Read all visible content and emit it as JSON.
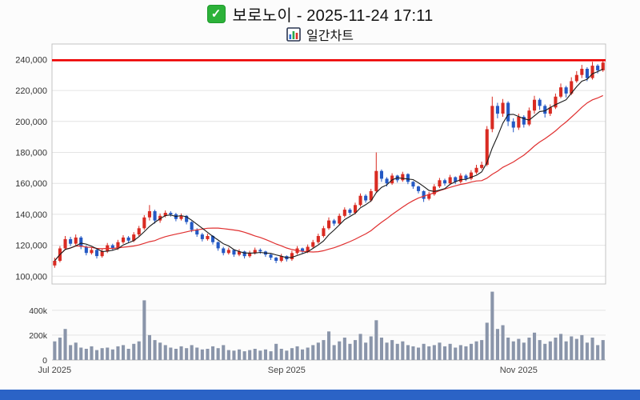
{
  "header": {
    "title": "보로노이 - 2025-11-24 17:11",
    "subtitle": "일간차트",
    "checkbox_glyph": "✓"
  },
  "footer": {
    "bar_color": "#2b63c6"
  },
  "chart_data": {
    "type": "candlestick",
    "title": "보로노이 - 2025-11-24 17:11",
    "subtitle": "일간차트",
    "x_ticks": [
      {
        "index": 0,
        "label": "Jul 2025"
      },
      {
        "index": 44,
        "label": "Sep 2025"
      },
      {
        "index": 88,
        "label": "Nov 2025"
      }
    ],
    "price_axis": {
      "min": 95000,
      "max": 250000,
      "ticks": [
        100000,
        120000,
        140000,
        160000,
        180000,
        200000,
        220000,
        240000
      ]
    },
    "volume_axis": {
      "max": 560000,
      "ticks": [
        0,
        200000,
        400000
      ],
      "tick_labels": [
        "0",
        "200k",
        "400k"
      ]
    },
    "alert_line": 239500,
    "ma_periods": {
      "fast": 5,
      "slow": 20
    },
    "colors": {
      "up": "#d92b22",
      "down": "#2459c4",
      "ma_fast": "#1a1a1a",
      "ma_slow": "#e03030",
      "volume": "#8a95aa",
      "alert": "#ee0000",
      "grid": "#e4e4e4",
      "border": "#c3c3c3",
      "tick_text": "#333333"
    },
    "candle_fields": [
      "open",
      "high",
      "low",
      "close",
      "volume"
    ],
    "candles": [
      [
        107000,
        112000,
        105500,
        110000,
        150000
      ],
      [
        110000,
        119500,
        109000,
        118000,
        180000
      ],
      [
        118000,
        126000,
        117000,
        124000,
        250000
      ],
      [
        124000,
        125500,
        119500,
        121000,
        120000
      ],
      [
        121000,
        127000,
        120000,
        125000,
        140000
      ],
      [
        125000,
        126000,
        117500,
        119000,
        100000
      ],
      [
        119000,
        120000,
        113500,
        115000,
        90000
      ],
      [
        115000,
        118500,
        114000,
        117000,
        110000
      ],
      [
        117000,
        118000,
        111500,
        113000,
        80000
      ],
      [
        113000,
        117500,
        112000,
        116000,
        95000
      ],
      [
        116000,
        121500,
        115000,
        120000,
        100000
      ],
      [
        120000,
        121000,
        116500,
        118000,
        85000
      ],
      [
        118000,
        123500,
        117000,
        122000,
        110000
      ],
      [
        122000,
        126500,
        121000,
        125000,
        120000
      ],
      [
        125000,
        126000,
        121500,
        123000,
        90000
      ],
      [
        123000,
        128500,
        122000,
        127000,
        130000
      ],
      [
        127000,
        132500,
        126000,
        131000,
        150000
      ],
      [
        131000,
        139500,
        130000,
        138000,
        480000
      ],
      [
        138000,
        146000,
        136000,
        142000,
        200000
      ],
      [
        142000,
        143000,
        134000,
        136000,
        160000
      ],
      [
        136000,
        140500,
        134500,
        139000,
        140000
      ],
      [
        139000,
        142500,
        138000,
        141000,
        120000
      ],
      [
        141000,
        142000,
        138500,
        140000,
        100000
      ],
      [
        140000,
        141000,
        135500,
        137000,
        90000
      ],
      [
        137000,
        140500,
        136000,
        139000,
        110000
      ],
      [
        139000,
        139500,
        133500,
        135000,
        95000
      ],
      [
        135000,
        135500,
        128500,
        130000,
        120000
      ],
      [
        130000,
        131000,
        125500,
        127000,
        100000
      ],
      [
        127000,
        128000,
        122500,
        124000,
        85000
      ],
      [
        124000,
        127500,
        123000,
        126000,
        90000
      ],
      [
        126000,
        126500,
        120500,
        122000,
        110000
      ],
      [
        122000,
        122500,
        116500,
        118000,
        95000
      ],
      [
        118000,
        119000,
        113500,
        115000,
        120000
      ],
      [
        115000,
        118500,
        114000,
        117000,
        80000
      ],
      [
        117000,
        117500,
        112500,
        114000,
        75000
      ],
      [
        114000,
        117500,
        113000,
        116000,
        85000
      ],
      [
        116000,
        116500,
        111500,
        113000,
        70000
      ],
      [
        113000,
        116500,
        112000,
        115000,
        80000
      ],
      [
        115000,
        118500,
        114000,
        117000,
        90000
      ],
      [
        117000,
        118000,
        114500,
        116000,
        75000
      ],
      [
        116000,
        116500,
        112500,
        114000,
        85000
      ],
      [
        114000,
        114500,
        110500,
        112000,
        70000
      ],
      [
        112000,
        112500,
        108500,
        110000,
        130000
      ],
      [
        110000,
        114500,
        109000,
        113000,
        90000
      ],
      [
        113000,
        113500,
        109500,
        111000,
        75000
      ],
      [
        111000,
        116500,
        110000,
        115000,
        95000
      ],
      [
        115000,
        119500,
        114000,
        118000,
        110000
      ],
      [
        118000,
        118500,
        114500,
        116000,
        85000
      ],
      [
        116000,
        120500,
        115000,
        119000,
        100000
      ],
      [
        119000,
        123500,
        118000,
        122000,
        120000
      ],
      [
        122000,
        127500,
        121000,
        126000,
        140000
      ],
      [
        126000,
        132500,
        125000,
        131000,
        160000
      ],
      [
        131000,
        138000,
        130000,
        136000,
        230000
      ],
      [
        136000,
        137000,
        132500,
        134000,
        120000
      ],
      [
        134000,
        140500,
        133000,
        139000,
        150000
      ],
      [
        139000,
        144500,
        138000,
        143000,
        180000
      ],
      [
        143000,
        144000,
        139500,
        141000,
        130000
      ],
      [
        141000,
        147500,
        140000,
        146000,
        160000
      ],
      [
        146000,
        153500,
        145000,
        152000,
        210000
      ],
      [
        152000,
        153000,
        147500,
        149000,
        140000
      ],
      [
        149000,
        156500,
        148000,
        155000,
        190000
      ],
      [
        155000,
        180000,
        154000,
        168000,
        320000
      ],
      [
        168000,
        169000,
        161000,
        163000,
        180000
      ],
      [
        163000,
        164000,
        158000,
        160000,
        140000
      ],
      [
        160000,
        166500,
        159000,
        165000,
        160000
      ],
      [
        165000,
        165500,
        160500,
        162000,
        130000
      ],
      [
        162000,
        167500,
        161000,
        166000,
        150000
      ],
      [
        166000,
        166500,
        159500,
        161000,
        120000
      ],
      [
        161000,
        161500,
        156500,
        158000,
        110000
      ],
      [
        158000,
        158500,
        153500,
        155000,
        100000
      ],
      [
        155000,
        155500,
        148000,
        150000,
        130000
      ],
      [
        150000,
        154500,
        149000,
        153000,
        110000
      ],
      [
        153000,
        159500,
        152000,
        158000,
        120000
      ],
      [
        158000,
        163500,
        157000,
        162000,
        140000
      ],
      [
        162000,
        163000,
        158500,
        160000,
        110000
      ],
      [
        160000,
        165500,
        159000,
        164000,
        130000
      ],
      [
        164000,
        164500,
        159500,
        161000,
        100000
      ],
      [
        161000,
        166500,
        160000,
        165000,
        120000
      ],
      [
        165000,
        166000,
        161500,
        163000,
        110000
      ],
      [
        163000,
        168500,
        162000,
        167000,
        130000
      ],
      [
        167000,
        172000,
        166000,
        170000,
        150000
      ],
      [
        170000,
        174000,
        169000,
        172000,
        160000
      ],
      [
        172000,
        197000,
        171000,
        195000,
        300000
      ],
      [
        195000,
        216000,
        193000,
        210000,
        550000
      ],
      [
        210000,
        212000,
        202000,
        205000,
        250000
      ],
      [
        205000,
        214500,
        203000,
        212000,
        280000
      ],
      [
        212000,
        213000,
        197000,
        200000,
        180000
      ],
      [
        200000,
        202000,
        193000,
        196000,
        150000
      ],
      [
        196000,
        205000,
        194500,
        203000,
        170000
      ],
      [
        203000,
        204000,
        196000,
        198000,
        140000
      ],
      [
        198000,
        209000,
        197000,
        207000,
        180000
      ],
      [
        207000,
        216500,
        205000,
        214000,
        220000
      ],
      [
        214000,
        215000,
        207500,
        210000,
        160000
      ],
      [
        210000,
        211000,
        202500,
        205000,
        130000
      ],
      [
        205000,
        211000,
        203500,
        209000,
        150000
      ],
      [
        209000,
        218000,
        208000,
        216000,
        180000
      ],
      [
        216000,
        224500,
        215000,
        222000,
        210000
      ],
      [
        222000,
        223000,
        215500,
        218000,
        150000
      ],
      [
        218000,
        228500,
        217000,
        226000,
        190000
      ],
      [
        226000,
        232500,
        225000,
        230000,
        170000
      ],
      [
        230000,
        236500,
        228000,
        234000,
        200000
      ],
      [
        234000,
        235000,
        226000,
        228000,
        140000
      ],
      [
        228000,
        238500,
        227000,
        236000,
        180000
      ],
      [
        236000,
        237000,
        231000,
        233000,
        120000
      ],
      [
        233000,
        240000,
        232000,
        238000,
        160000
      ]
    ]
  }
}
